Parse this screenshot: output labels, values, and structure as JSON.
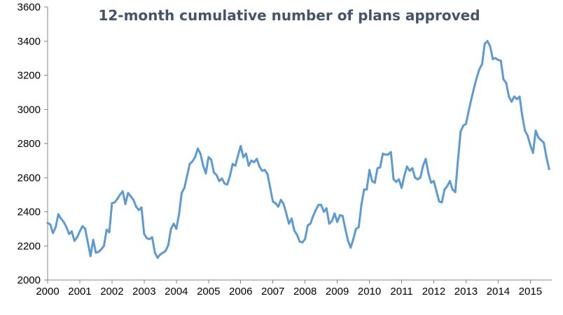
{
  "chart_data": {
    "type": "line",
    "title": "12-month cumulative number of plans approved",
    "xlabel": "",
    "ylabel": "",
    "x_tick_labels": [
      "2000",
      "2001",
      "2002",
      "2003",
      "2004",
      "2005",
      "2006",
      "2007",
      "2008",
      "2009",
      "2010",
      "2011",
      "2012",
      "2013",
      "2014",
      "2015"
    ],
    "y_tick_labels": [
      "2000",
      "2200",
      "2400",
      "2600",
      "2800",
      "3000",
      "3200",
      "3400",
      "3600"
    ],
    "ylim": [
      2000,
      3600
    ],
    "xlim": [
      "2000-01",
      "2015-09"
    ],
    "grid": false,
    "legend": "none",
    "colors": {
      "series": "#5b9bd5",
      "axis": "#868686",
      "title": "#44546a"
    },
    "series": [
      {
        "x": [
          "2000-01",
          "2000-02",
          "2000-03",
          "2000-04",
          "2000-05",
          "2000-06",
          "2000-07",
          "2000-08",
          "2000-09",
          "2000-10",
          "2000-11",
          "2000-12",
          "2001-01",
          "2001-02",
          "2001-03",
          "2001-04",
          "2001-05",
          "2001-06",
          "2001-07",
          "2001-08",
          "2001-09",
          "2001-10",
          "2001-11",
          "2001-12",
          "2002-01",
          "2002-02",
          "2002-03",
          "2002-04",
          "2002-05",
          "2002-06",
          "2002-07",
          "2002-08",
          "2002-09",
          "2002-10",
          "2002-11",
          "2002-12",
          "2003-01",
          "2003-02",
          "2003-03",
          "2003-04",
          "2003-05",
          "2003-06",
          "2003-07",
          "2003-08",
          "2003-09",
          "2003-10",
          "2003-11",
          "2003-12",
          "2004-01",
          "2004-02",
          "2004-03",
          "2004-04",
          "2004-05",
          "2004-06",
          "2004-07",
          "2004-08",
          "2004-09",
          "2004-10",
          "2004-11",
          "2004-12",
          "2005-01",
          "2005-02",
          "2005-03",
          "2005-04",
          "2005-05",
          "2005-06",
          "2005-07",
          "2005-08",
          "2005-09",
          "2005-10",
          "2005-11",
          "2005-12",
          "2006-01",
          "2006-02",
          "2006-03",
          "2006-04",
          "2006-05",
          "2006-06",
          "2006-07",
          "2006-08",
          "2006-09",
          "2006-10",
          "2006-11",
          "2006-12",
          "2007-01",
          "2007-02",
          "2007-03",
          "2007-04",
          "2007-05",
          "2007-06",
          "2007-07",
          "2007-08",
          "2007-09",
          "2007-10",
          "2007-11",
          "2007-12",
          "2008-01",
          "2008-02",
          "2008-03",
          "2008-04",
          "2008-05",
          "2008-06",
          "2008-07",
          "2008-08",
          "2008-09",
          "2008-10",
          "2008-11",
          "2008-12",
          "2009-01",
          "2009-02",
          "2009-03",
          "2009-04",
          "2009-05",
          "2009-06",
          "2009-07",
          "2009-08",
          "2009-09",
          "2009-10",
          "2009-11",
          "2009-12",
          "2010-01",
          "2010-02",
          "2010-03",
          "2010-04",
          "2010-05",
          "2010-06",
          "2010-07",
          "2010-08",
          "2010-09",
          "2010-10",
          "2010-11",
          "2010-12",
          "2011-01",
          "2011-02",
          "2011-03",
          "2011-04",
          "2011-05",
          "2011-06",
          "2011-07",
          "2011-08",
          "2011-09",
          "2011-10",
          "2011-11",
          "2011-12",
          "2012-01",
          "2012-02",
          "2012-03",
          "2012-04",
          "2012-05",
          "2012-06",
          "2012-07",
          "2012-08",
          "2012-09",
          "2012-10",
          "2012-11",
          "2012-12",
          "2013-01",
          "2013-02",
          "2013-03",
          "2013-04",
          "2013-05",
          "2013-06",
          "2013-07",
          "2013-08",
          "2013-09",
          "2013-10",
          "2013-11",
          "2013-12",
          "2014-01",
          "2014-02",
          "2014-03",
          "2014-04",
          "2014-05",
          "2014-06",
          "2014-07",
          "2014-08",
          "2014-09",
          "2014-10",
          "2014-11",
          "2014-12",
          "2015-01",
          "2015-02",
          "2015-03",
          "2015-04",
          "2015-05",
          "2015-06",
          "2015-07",
          "2015-08"
        ],
        "values": [
          2335,
          2325,
          2275,
          2310,
          2385,
          2360,
          2340,
          2310,
          2270,
          2285,
          2230,
          2250,
          2285,
          2315,
          2300,
          2220,
          2140,
          2235,
          2160,
          2165,
          2180,
          2200,
          2295,
          2280,
          2450,
          2455,
          2475,
          2500,
          2520,
          2445,
          2510,
          2490,
          2470,
          2430,
          2410,
          2425,
          2270,
          2245,
          2240,
          2250,
          2160,
          2130,
          2150,
          2160,
          2170,
          2205,
          2300,
          2330,
          2300,
          2385,
          2510,
          2540,
          2610,
          2680,
          2695,
          2720,
          2770,
          2740,
          2670,
          2625,
          2720,
          2705,
          2630,
          2615,
          2580,
          2595,
          2565,
          2560,
          2610,
          2680,
          2670,
          2730,
          2785,
          2720,
          2740,
          2670,
          2700,
          2690,
          2710,
          2665,
          2640,
          2645,
          2620,
          2540,
          2460,
          2450,
          2430,
          2470,
          2445,
          2390,
          2330,
          2360,
          2290,
          2265,
          2225,
          2220,
          2240,
          2320,
          2330,
          2375,
          2410,
          2440,
          2440,
          2400,
          2420,
          2330,
          2345,
          2390,
          2340,
          2380,
          2375,
          2300,
          2230,
          2190,
          2240,
          2300,
          2310,
          2440,
          2530,
          2530,
          2645,
          2580,
          2570,
          2655,
          2660,
          2740,
          2735,
          2735,
          2750,
          2590,
          2575,
          2590,
          2540,
          2610,
          2665,
          2640,
          2655,
          2600,
          2590,
          2600,
          2670,
          2710,
          2625,
          2570,
          2580,
          2520,
          2460,
          2455,
          2530,
          2550,
          2580,
          2530,
          2515,
          2700,
          2870,
          2905,
          2915,
          2990,
          3060,
          3125,
          3185,
          3235,
          3265,
          3385,
          3400,
          3370,
          3295,
          3300,
          3290,
          3285,
          3175,
          3155,
          3075,
          3045,
          3075,
          3060,
          3075,
          2960,
          2875,
          2845,
          2790,
          2745,
          2875,
          2835,
          2820,
          2805,
          2720,
          2650
        ]
      }
    ]
  }
}
